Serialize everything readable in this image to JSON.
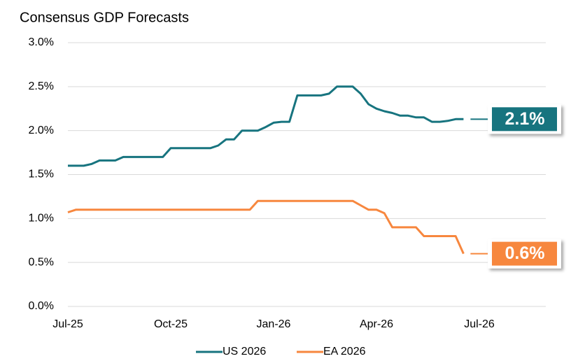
{
  "chart_data": {
    "type": "line",
    "title": "Consensus GDP Forecasts",
    "categories": [
      "Jul-25",
      null,
      null,
      null,
      null,
      null,
      null,
      null,
      null,
      null,
      null,
      null,
      null,
      "Oct-25",
      null,
      null,
      null,
      null,
      null,
      null,
      null,
      null,
      null,
      null,
      null,
      null,
      "Jan-26",
      null,
      null,
      null,
      null,
      null,
      null,
      null,
      null,
      null,
      null,
      null,
      null,
      "Apr-26",
      null,
      null,
      null,
      null,
      null,
      null,
      null,
      null,
      null,
      null,
      null,
      null,
      "Jul-26",
      null,
      null,
      null,
      null,
      null,
      null,
      null
    ],
    "series": [
      {
        "name": "US 2026",
        "color": "#17747f",
        "values": [
          1.6,
          1.6,
          1.6,
          1.62,
          1.66,
          1.66,
          1.66,
          1.7,
          1.7,
          1.7,
          1.7,
          1.7,
          1.7,
          1.8,
          1.8,
          1.8,
          1.8,
          1.8,
          1.8,
          1.83,
          1.9,
          1.9,
          2.0,
          2.0,
          2.0,
          2.04,
          2.09,
          2.1,
          2.1,
          2.4,
          2.4,
          2.4,
          2.4,
          2.42,
          2.5,
          2.5,
          2.5,
          2.42,
          2.3,
          2.25,
          2.22,
          2.2,
          2.17,
          2.17,
          2.15,
          2.15,
          2.1,
          2.1,
          2.11,
          2.13,
          2.13,
          null,
          null,
          null,
          null,
          null,
          null,
          null,
          null,
          null
        ],
        "value_labels": [
          null,
          null,
          null,
          null,
          null,
          null,
          null,
          null,
          null,
          null,
          null,
          null,
          null,
          null,
          null,
          null,
          null,
          null,
          null,
          null,
          null,
          null,
          null,
          null,
          null,
          null,
          null,
          null,
          null,
          null,
          null,
          null,
          null,
          null,
          null,
          null,
          null,
          null,
          null,
          null,
          null,
          null,
          null,
          null,
          null,
          null,
          null,
          null,
          null,
          null,
          "2.1%",
          null,
          null,
          null,
          null,
          null,
          null,
          null,
          null,
          null
        ]
      },
      {
        "name": "EA 2026",
        "color": "#f7873e",
        "values": [
          1.07,
          1.1,
          1.1,
          1.1,
          1.1,
          1.1,
          1.1,
          1.1,
          1.1,
          1.1,
          1.1,
          1.1,
          1.1,
          1.1,
          1.1,
          1.1,
          1.1,
          1.1,
          1.1,
          1.1,
          1.1,
          1.1,
          1.1,
          1.1,
          1.2,
          1.2,
          1.2,
          1.2,
          1.2,
          1.2,
          1.2,
          1.2,
          1.2,
          1.2,
          1.2,
          1.2,
          1.2,
          1.15,
          1.1,
          1.1,
          1.06,
          0.9,
          0.9,
          0.9,
          0.9,
          0.8,
          0.8,
          0.8,
          0.8,
          0.8,
          0.6,
          null,
          null,
          null,
          null,
          null,
          null,
          null,
          null,
          null
        ],
        "value_labels": [
          null,
          null,
          null,
          null,
          null,
          null,
          null,
          null,
          null,
          null,
          null,
          null,
          null,
          null,
          null,
          null,
          null,
          null,
          null,
          null,
          null,
          null,
          null,
          null,
          null,
          null,
          null,
          null,
          null,
          null,
          null,
          null,
          null,
          null,
          null,
          null,
          null,
          null,
          null,
          null,
          null,
          null,
          null,
          null,
          null,
          null,
          null,
          null,
          null,
          null,
          "0.6%",
          null,
          null,
          null,
          null,
          null,
          null,
          null,
          null,
          null
        ]
      }
    ],
    "ylim": [
      0,
      3
    ],
    "yticks": [
      {
        "value": 0,
        "label": "0.0%"
      },
      {
        "value": 0.5,
        "label": "0.5%"
      },
      {
        "value": 1,
        "label": "1.0%"
      },
      {
        "value": 1.5,
        "label": "1.5%"
      },
      {
        "value": 2,
        "label": "2.0%"
      },
      {
        "value": 2.5,
        "label": "2.5%"
      },
      {
        "value": 3,
        "label": "3.0%"
      }
    ],
    "grid": true,
    "legend": "bottom"
  }
}
